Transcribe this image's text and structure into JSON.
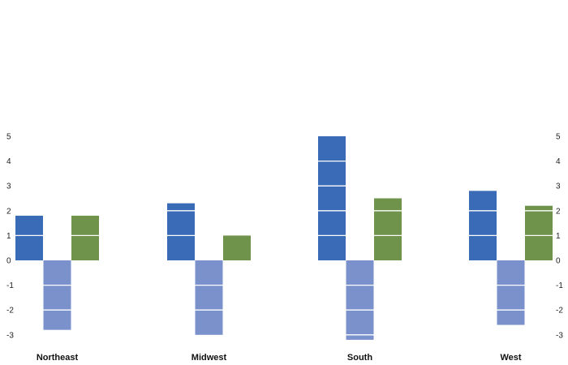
{
  "chart_data": {
    "type": "bar",
    "title": "",
    "xlabel": "",
    "ylabel": "",
    "categories": [
      "Northeast",
      "Midwest",
      "South",
      "West"
    ],
    "series": [
      {
        "values": [
          1.8,
          2.3,
          5.0,
          2.8
        ],
        "color": "#3a6bb7"
      },
      {
        "values": [
          -2.8,
          -3.0,
          -3.2,
          -2.6
        ],
        "color": "#7b91cc"
      },
      {
        "values": [
          1.8,
          1.0,
          2.5,
          2.2
        ],
        "color": "#6f934b"
      }
    ],
    "ylim": [
      -3,
      5
    ],
    "yticks": [
      -3,
      -2,
      -1,
      0,
      1,
      2,
      3,
      4,
      5
    ],
    "ytick_labels": [
      "-3",
      "-2",
      "-1",
      "0",
      "1",
      "2",
      "3",
      "4",
      "5"
    ],
    "grid": false,
    "axes": "left and right",
    "bar_segment_lines": "white lines at each integer"
  }
}
